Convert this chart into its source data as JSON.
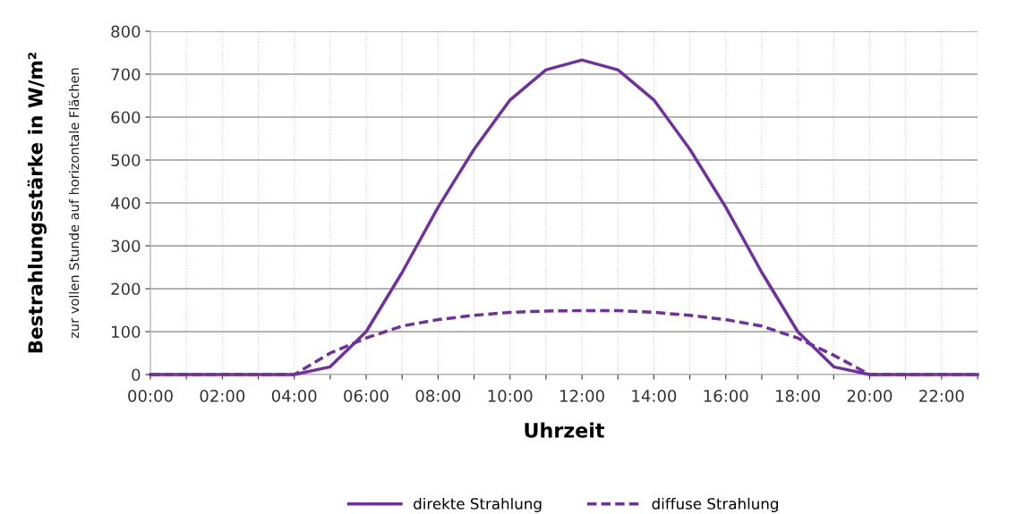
{
  "chart_data": {
    "type": "line",
    "xlabel": "Uhrzeit",
    "ylabel": "Bestrahlungsstärke in W/m²",
    "annotations": [
      "zur vollen Stunde auf horizontale Flächen"
    ],
    "x": [
      0,
      1,
      2,
      3,
      4,
      5,
      6,
      7,
      8,
      9,
      10,
      11,
      12,
      13,
      14,
      15,
      16,
      17,
      18,
      19,
      20,
      21,
      22,
      23
    ],
    "series": [
      {
        "name": "direkte Strahlung",
        "color": "#7030a0",
        "line_style": "solid",
        "values": [
          0,
          0,
          0,
          0,
          0,
          18,
          100,
          238,
          390,
          525,
          640,
          710,
          733,
          710,
          640,
          525,
          390,
          238,
          100,
          18,
          0,
          0,
          0,
          0
        ]
      },
      {
        "name": "diffuse Strahlung",
        "color": "#7030a0",
        "line_style": "dashed",
        "values": [
          0,
          0,
          0,
          0,
          0,
          50,
          85,
          113,
          128,
          138,
          145,
          148,
          149,
          149,
          145,
          138,
          128,
          113,
          85,
          45,
          0,
          0,
          0,
          0
        ]
      }
    ],
    "xlim": [
      0,
      23
    ],
    "xticks": [
      {
        "value": 0,
        "label": "00:00"
      },
      {
        "value": 1,
        "label": null
      },
      {
        "value": 2,
        "label": "02:00"
      },
      {
        "value": 3,
        "label": null
      },
      {
        "value": 4,
        "label": "04:00"
      },
      {
        "value": 5,
        "label": null
      },
      {
        "value": 6,
        "label": "06:00"
      },
      {
        "value": 7,
        "label": null
      },
      {
        "value": 8,
        "label": "08:00"
      },
      {
        "value": 9,
        "label": null
      },
      {
        "value": 10,
        "label": "10:00"
      },
      {
        "value": 11,
        "label": null
      },
      {
        "value": 12,
        "label": "12:00"
      },
      {
        "value": 13,
        "label": null
      },
      {
        "value": 14,
        "label": "14:00"
      },
      {
        "value": 15,
        "label": null
      },
      {
        "value": 16,
        "label": "16:00"
      },
      {
        "value": 17,
        "label": null
      },
      {
        "value": 18,
        "label": "18:00"
      },
      {
        "value": 19,
        "label": null
      },
      {
        "value": 20,
        "label": "20:00"
      },
      {
        "value": 21,
        "label": null
      },
      {
        "value": 22,
        "label": "22:00"
      },
      {
        "value": 23,
        "label": null
      }
    ],
    "ylim": [
      0,
      800
    ],
    "yticks": [
      0,
      100,
      200,
      300,
      400,
      500,
      600,
      700,
      800
    ],
    "grid": true,
    "legend": "bottom",
    "marker": "none"
  }
}
